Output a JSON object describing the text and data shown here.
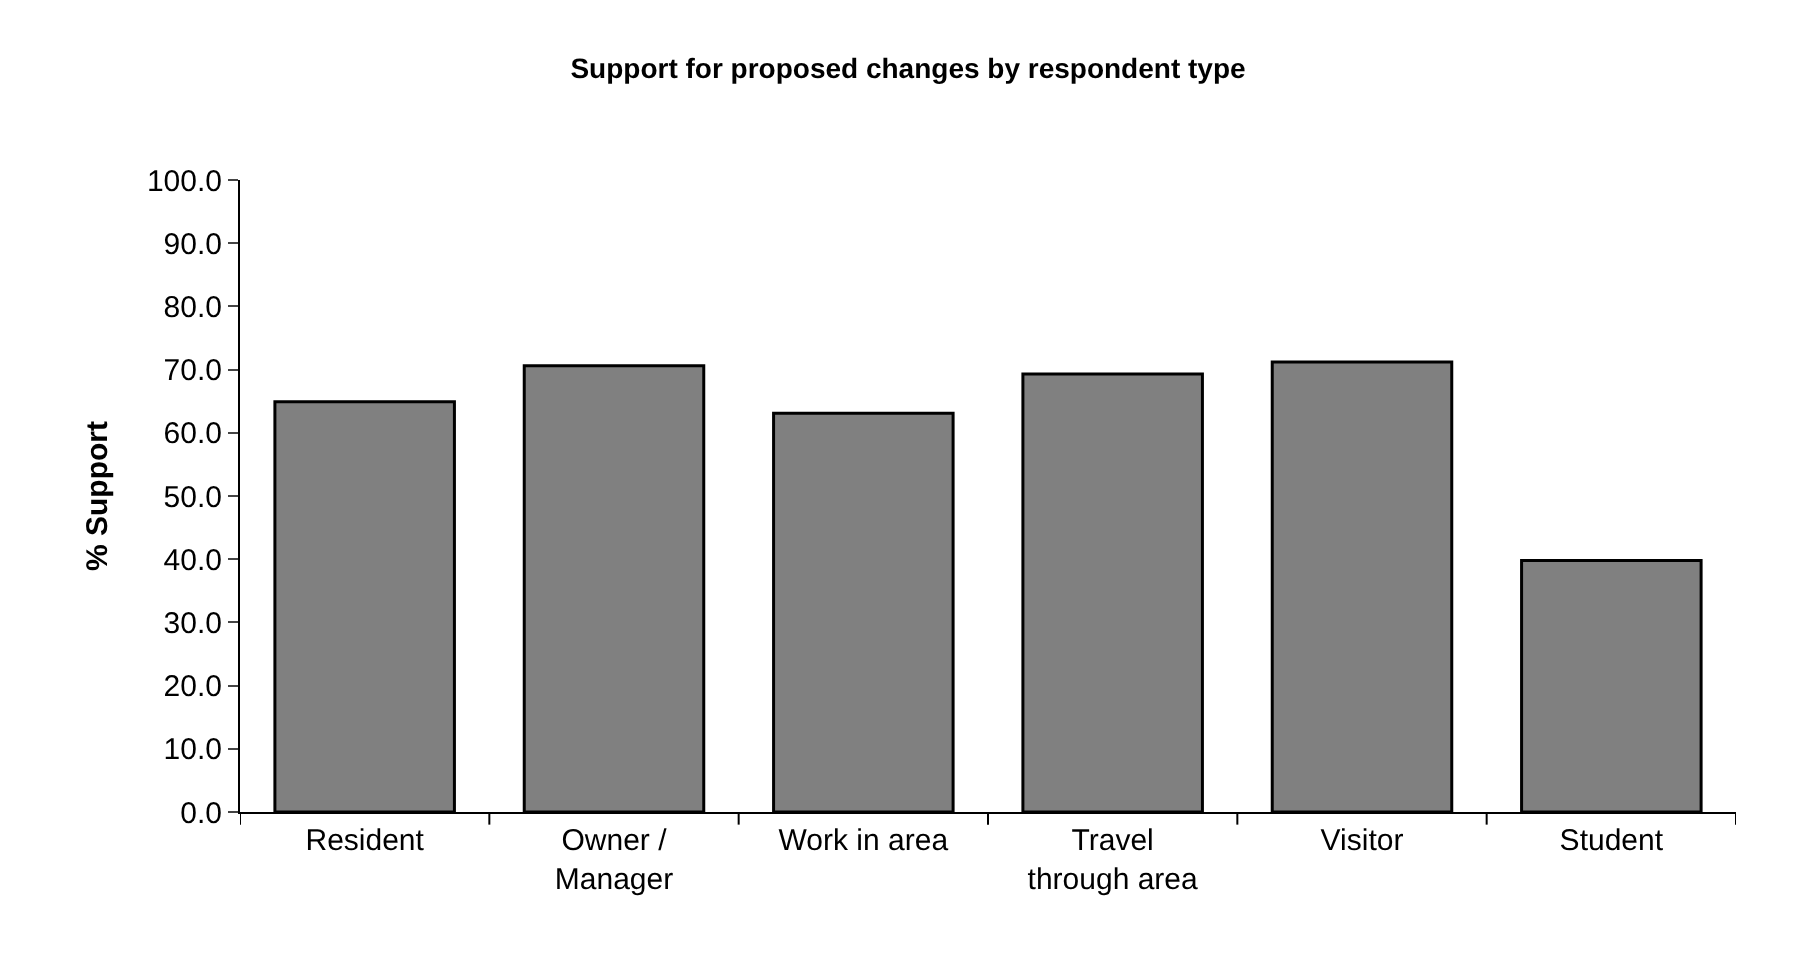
{
  "chart_data": {
    "type": "bar",
    "title": "Support for proposed changes by respondent type",
    "ylabel": "% Support",
    "categories": [
      "Resident",
      "Owner /\nManager",
      "Work in area",
      "Travel\nthrough area",
      "Visitor",
      "Student"
    ],
    "values": [
      64.9,
      70.6,
      63.1,
      69.3,
      71.2,
      39.8
    ],
    "color": "#808080",
    "ylim": [
      0,
      100
    ],
    "yticks": [
      {
        "value": 0,
        "label": "0.0"
      },
      {
        "value": 10,
        "label": "10.0"
      },
      {
        "value": 20,
        "label": "20.0"
      },
      {
        "value": 30,
        "label": "30.0"
      },
      {
        "value": 40,
        "label": "40.0"
      },
      {
        "value": 50,
        "label": "50.0"
      },
      {
        "value": 60,
        "label": "60.0"
      },
      {
        "value": 70,
        "label": "70.0"
      },
      {
        "value": 80,
        "label": "80.0"
      },
      {
        "value": 90,
        "label": "90.0"
      },
      {
        "value": 100,
        "label": "100.0"
      }
    ],
    "grid": false
  }
}
